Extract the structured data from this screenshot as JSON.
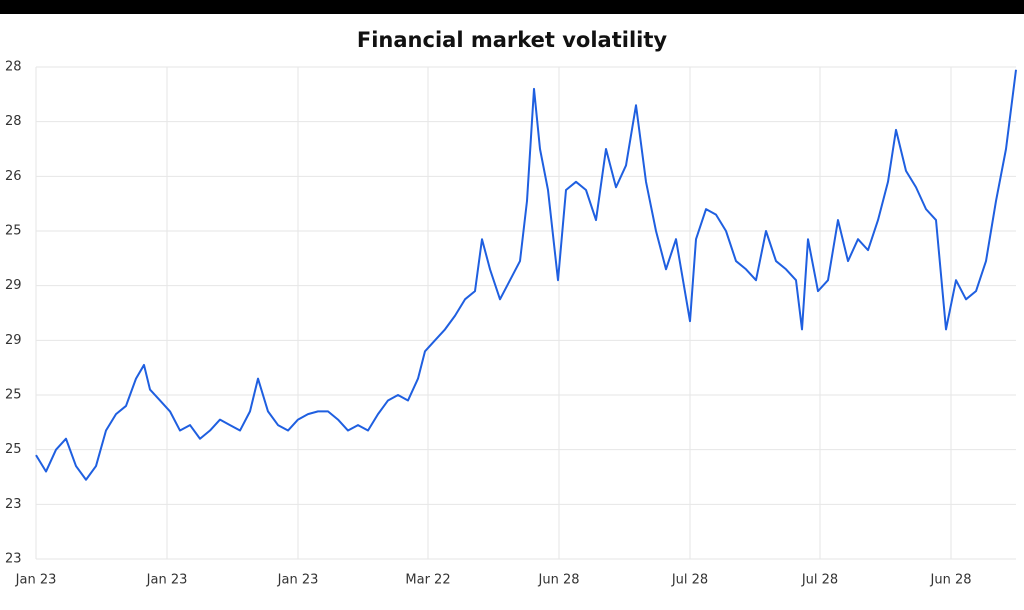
{
  "chart_data": {
    "type": "line",
    "title": "Financial market volatility",
    "xlim": [
      0,
      980
    ],
    "ylim": [
      0,
      9
    ],
    "xticks": [
      {
        "value": 0,
        "label": "Jan 23"
      },
      {
        "value": 131,
        "label": "Jan 23"
      },
      {
        "value": 262,
        "label": "Jan 23"
      },
      {
        "value": 392,
        "label": "Mar 22"
      },
      {
        "value": 523,
        "label": "Jun 28"
      },
      {
        "value": 654,
        "label": "Jul 28"
      },
      {
        "value": 784,
        "label": "Jul 28"
      },
      {
        "value": 915,
        "label": "Jun 28"
      }
    ],
    "yticks": [
      {
        "value": 0,
        "label": "23"
      },
      {
        "value": 1,
        "label": "23"
      },
      {
        "value": 2,
        "label": "25"
      },
      {
        "value": 3,
        "label": "25"
      },
      {
        "value": 4,
        "label": "29"
      },
      {
        "value": 5,
        "label": "29"
      },
      {
        "value": 6,
        "label": "25"
      },
      {
        "value": 7,
        "label": "26"
      },
      {
        "value": 8,
        "label": "28"
      },
      {
        "value": 9,
        "label": "28"
      }
    ],
    "grid": true,
    "series": [
      {
        "color": "#1f5fe0",
        "x": [
          0,
          10,
          20,
          30,
          40,
          50,
          60,
          70,
          80,
          90,
          100,
          108,
          114,
          124,
          134,
          144,
          154,
          164,
          174,
          184,
          194,
          204,
          214,
          222,
          232,
          242,
          252,
          262,
          272,
          282,
          292,
          302,
          312,
          322,
          332,
          342,
          352,
          362,
          372,
          382,
          389,
          399,
          409,
          419,
          429,
          439,
          446,
          454,
          464,
          474,
          484,
          491,
          498,
          504,
          512,
          522,
          530,
          540,
          550,
          560,
          570,
          580,
          590,
          600,
          610,
          620,
          630,
          640,
          654,
          660,
          670,
          680,
          690,
          700,
          710,
          720,
          730,
          740,
          750,
          760,
          766,
          772,
          782,
          792,
          802,
          812,
          822,
          832,
          842,
          852,
          860,
          870,
          880,
          890,
          900,
          910,
          920,
          930,
          940,
          950,
          960,
          970,
          980
        ],
        "values": [
          1.9,
          1.6,
          2.0,
          2.2,
          1.7,
          1.45,
          1.7,
          2.35,
          2.65,
          2.8,
          3.3,
          3.55,
          3.1,
          2.9,
          2.7,
          2.35,
          2.45,
          2.2,
          2.35,
          2.55,
          2.45,
          2.35,
          2.7,
          3.3,
          2.7,
          2.45,
          2.35,
          2.55,
          2.65,
          2.7,
          2.7,
          2.55,
          2.35,
          2.45,
          2.35,
          2.65,
          2.9,
          3.0,
          2.9,
          3.3,
          3.8,
          4.0,
          4.2,
          4.45,
          4.75,
          4.9,
          5.85,
          5.3,
          4.75,
          5.1,
          5.45,
          6.55,
          8.6,
          7.5,
          6.75,
          5.1,
          6.75,
          6.9,
          6.75,
          6.2,
          7.5,
          6.8,
          7.2,
          8.3,
          6.9,
          6.0,
          5.3,
          5.85,
          4.35,
          5.85,
          6.4,
          6.3,
          6.0,
          5.45,
          5.3,
          5.1,
          6.0,
          5.45,
          5.3,
          5.1,
          4.2,
          5.85,
          4.9,
          5.1,
          6.2,
          5.45,
          5.85,
          5.65,
          6.2,
          6.9,
          7.85,
          7.1,
          6.8,
          6.4,
          6.2,
          4.2,
          5.1,
          4.75,
          4.9,
          5.45,
          6.55,
          7.5,
          8.95
        ]
      }
    ]
  }
}
